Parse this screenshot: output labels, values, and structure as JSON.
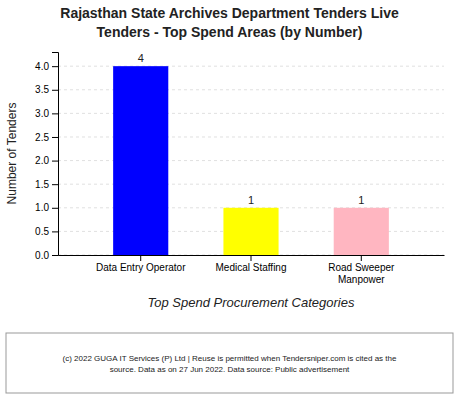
{
  "chart_data": {
    "type": "bar",
    "title": "Rajasthan State Archives Department Tenders Live",
    "subtitle": "Tenders - Top Spend Areas (by Number)",
    "categories": [
      "Data Entry Operator",
      "Medical Staffing",
      "Road Sweeper\nManpower"
    ],
    "values": [
      4,
      1,
      1
    ],
    "colors": [
      "#0000FF",
      "#FFFF00",
      "#FFB6C1"
    ],
    "y_label": "Number of Tenders",
    "x_label": "Top Spend Procurement Categories",
    "ylim": [
      0,
      4.3
    ],
    "yticks": [
      {
        "value": 0,
        "label": "0.0"
      },
      0.5,
      {
        "value": 1,
        "label": "1.0"
      },
      1.5,
      {
        "value": 2,
        "label": "2.0"
      },
      2.5,
      {
        "value": 3,
        "label": "3.0"
      },
      3.5,
      {
        "value": 4,
        "label": "4.0"
      }
    ],
    "grid": true,
    "data_labels": true,
    "annotations": [
      "(c) 2022 GUGA IT Services (P) Ltd | Reuse is permitted when Tendersniper.com is cited as the\nsource. Data as on 27 Jun 2022. Data source: Public advertisement"
    ]
  }
}
